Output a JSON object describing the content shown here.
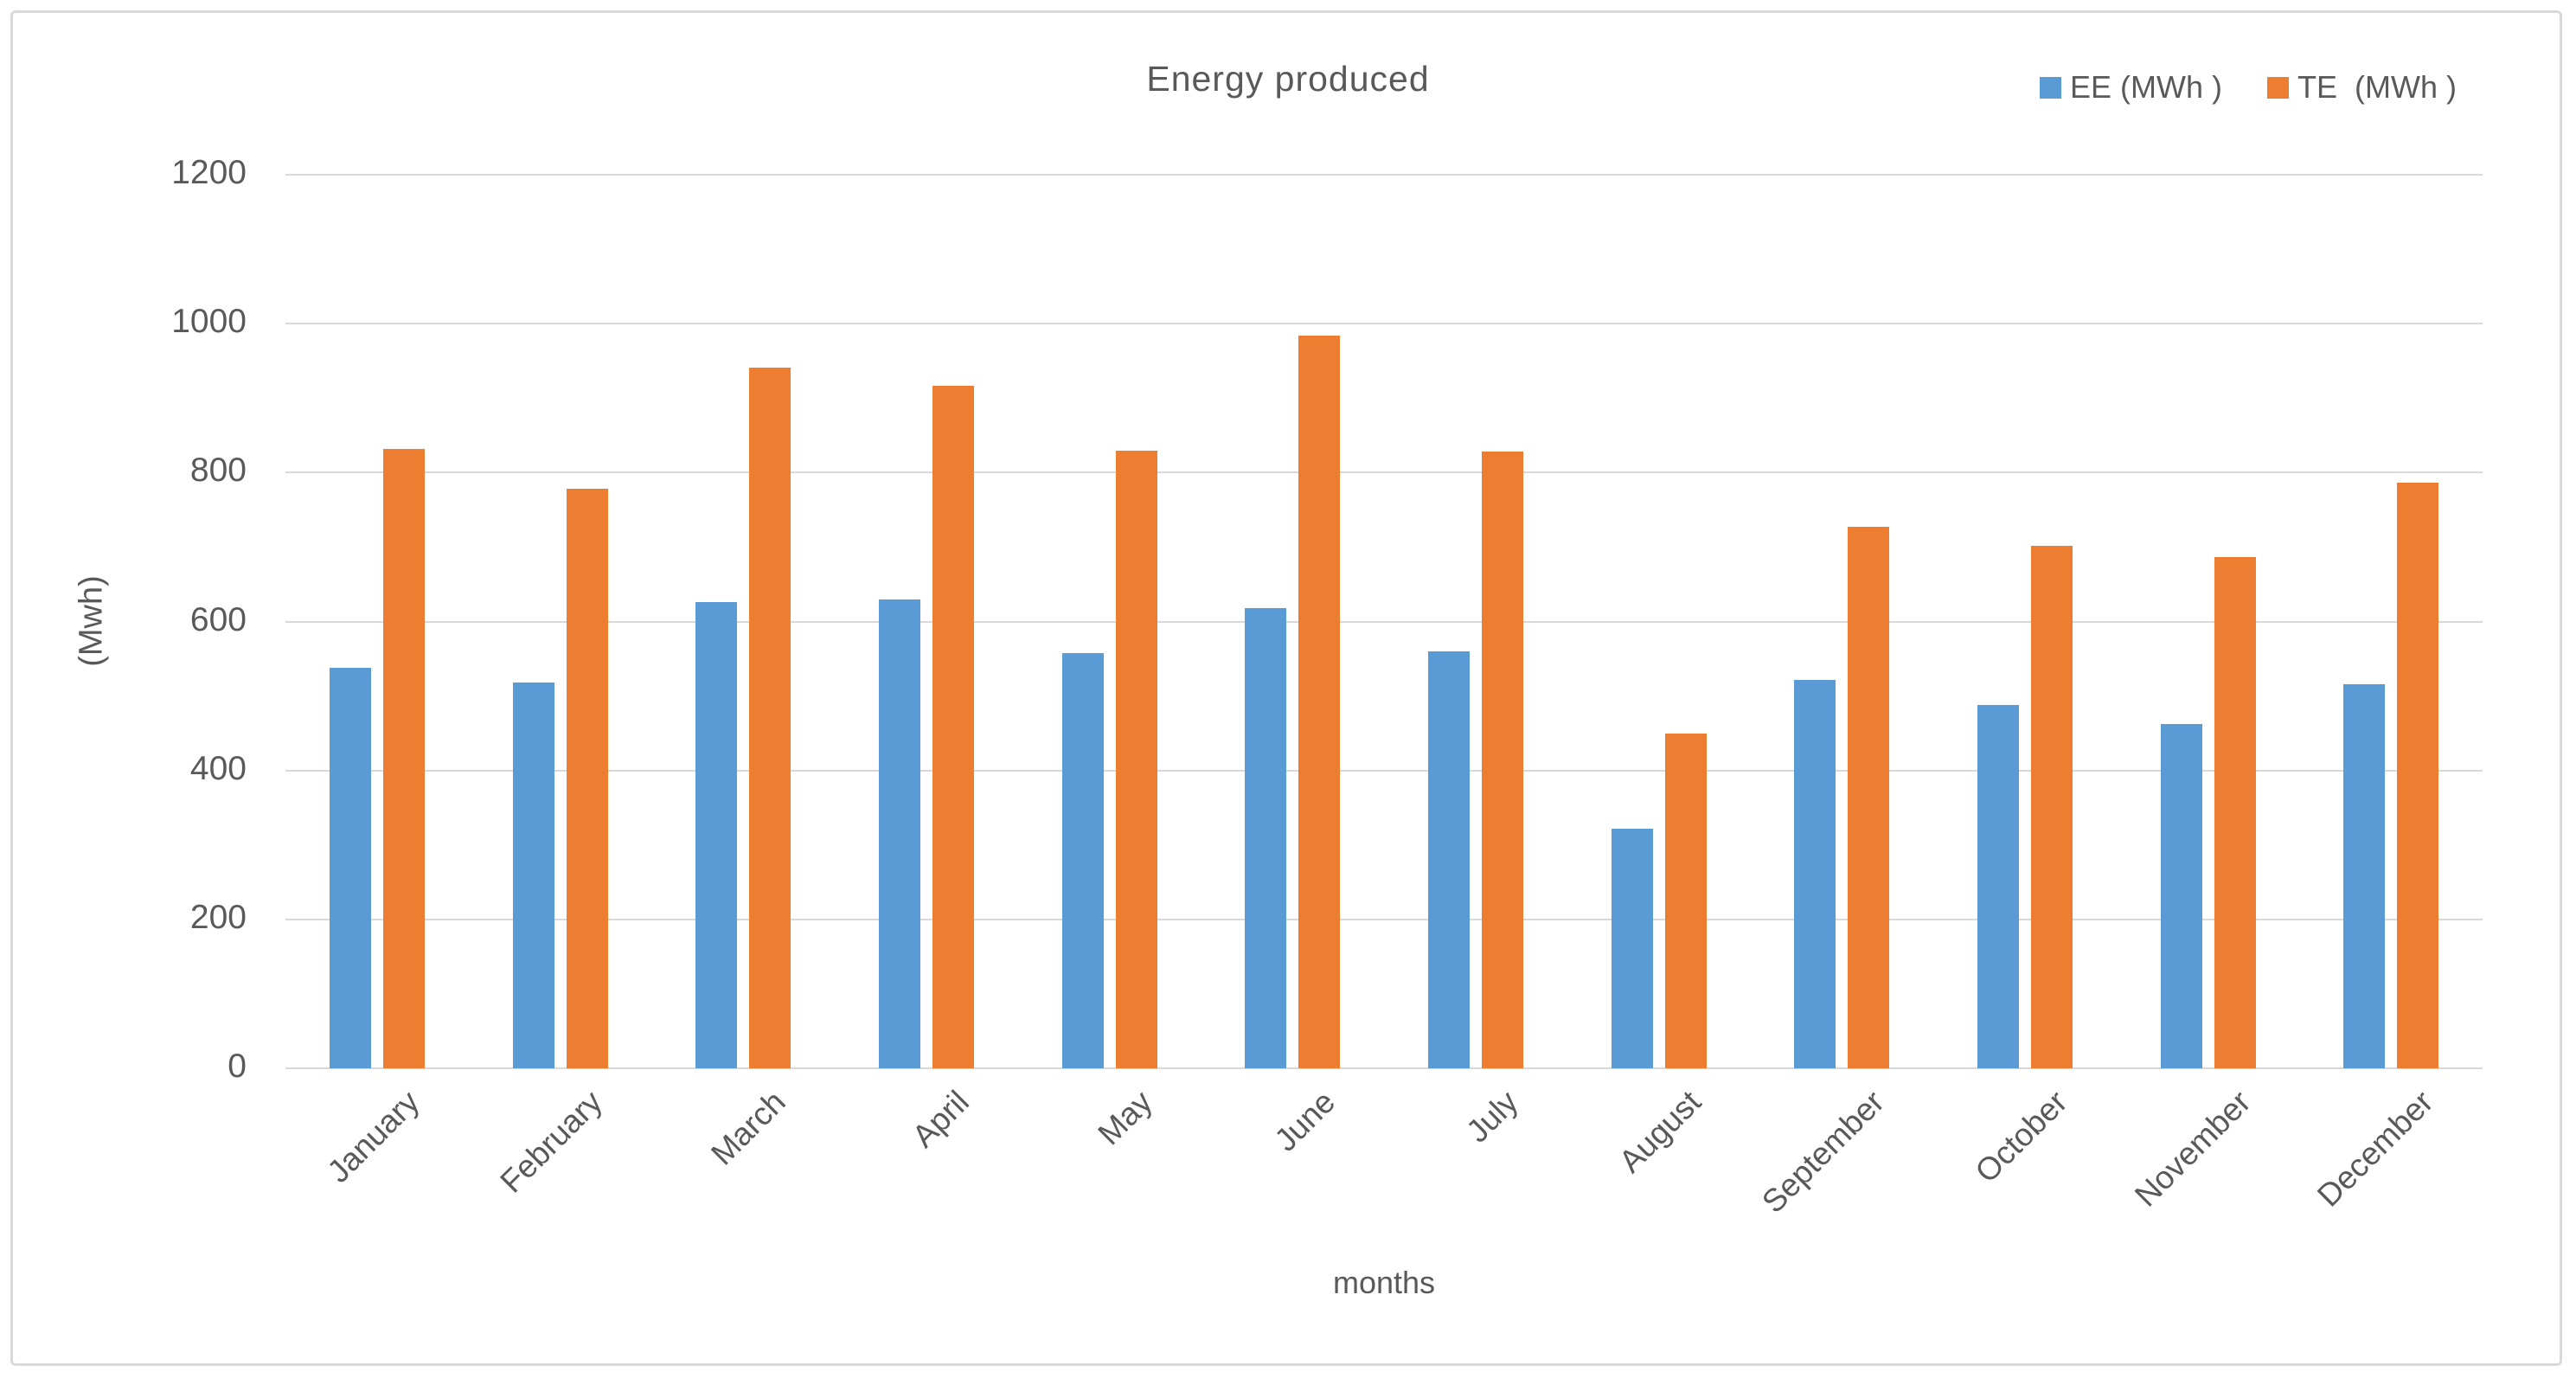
{
  "chart_data": {
    "type": "bar",
    "title": "Energy produced",
    "categories": [
      "January",
      "February",
      "March",
      "April",
      "May",
      "June",
      "July",
      "August",
      "September",
      "October",
      "November",
      "December"
    ],
    "series": [
      {
        "name": "EE (MWh )",
        "color": "#5B9BD5",
        "values": [
          538,
          518,
          626,
          630,
          558,
          618,
          560,
          322,
          522,
          488,
          462,
          516
        ]
      },
      {
        "name": "TE  (MWh )",
        "color": "#ED7D31",
        "values": [
          832,
          778,
          941,
          916,
          829,
          984,
          828,
          449,
          727,
          702,
          686,
          786
        ]
      }
    ],
    "xlabel": "months",
    "ylabel": "(Mwh)",
    "ylim": [
      0,
      1200
    ],
    "yticks": [
      0,
      200,
      400,
      600,
      800,
      1000,
      1200
    ],
    "grid": true,
    "legend_position": "top-right",
    "gridline_color": "#D9D9D9",
    "axis_text_color": "#595959",
    "frame_border_color": "#D9D9D9",
    "background_color": "#FFFFFF"
  }
}
